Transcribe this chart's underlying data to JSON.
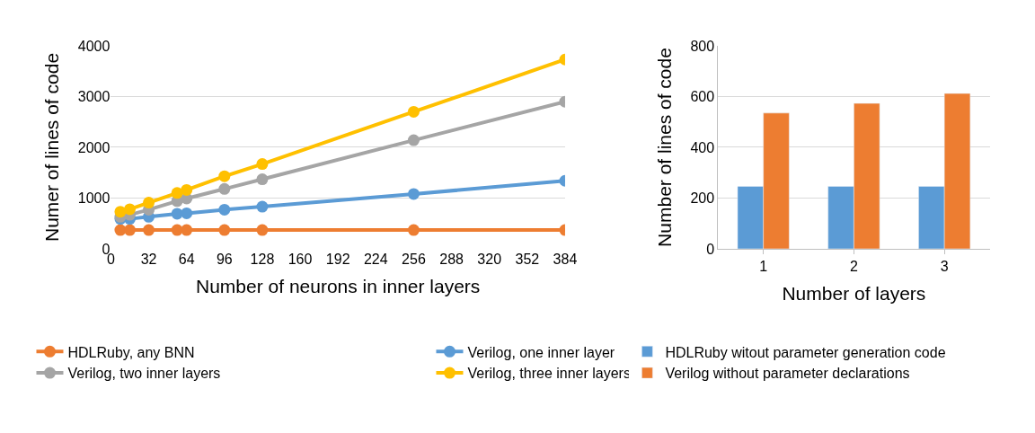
{
  "chart_data": [
    {
      "type": "line",
      "xlabel": "Number of neurons in inner layers",
      "ylabel": "Numer of lines of code",
      "x": [
        8,
        16,
        32,
        56,
        64,
        96,
        128,
        256,
        384
      ],
      "xlim": [
        0,
        384
      ],
      "xticks": [
        0,
        32,
        64,
        96,
        128,
        160,
        192,
        224,
        256,
        288,
        320,
        352,
        384
      ],
      "ylim": [
        0,
        4000
      ],
      "yticks": [
        0,
        1000,
        2000,
        3000,
        4000
      ],
      "grid": "y",
      "legend": "bottom",
      "marker": "circle",
      "line_style": "solid",
      "series": [
        {
          "name": "HDLRuby, any BNN",
          "color": "#ed7d31",
          "values": [
            370,
            370,
            370,
            370,
            370,
            370,
            370,
            370,
            370
          ]
        },
        {
          "name": "Verilog, one inner layer",
          "color": "#5b9bd5",
          "values": [
            590,
            590,
            630,
            690,
            700,
            770,
            830,
            1080,
            1340
          ]
        },
        {
          "name": "Verilog, two inner layers",
          "color": "#a5a5a5",
          "values": [
            630,
            670,
            770,
            940,
            990,
            1180,
            1370,
            2140,
            2900
          ]
        },
        {
          "name": "Verilog, three inner layers",
          "color": "#ffc000",
          "values": [
            730,
            780,
            910,
            1100,
            1160,
            1430,
            1670,
            2700,
            3730
          ]
        }
      ]
    },
    {
      "type": "bar",
      "xlabel": "Number of layers",
      "ylabel": "Number of lines of code",
      "categories": [
        "1",
        "2",
        "3"
      ],
      "ylim": [
        0,
        800
      ],
      "yticks": [
        0,
        200,
        400,
        600,
        800
      ],
      "grid": "y",
      "legend": "bottom",
      "series": [
        {
          "name": "HDLRuby witout parameter generation code",
          "color": "#5b9bd5",
          "values": [
            246,
            246,
            246
          ]
        },
        {
          "name": "Verilog without parameter declarations",
          "color": "#ed7d31",
          "values": [
            535,
            573,
            612
          ]
        }
      ]
    }
  ]
}
